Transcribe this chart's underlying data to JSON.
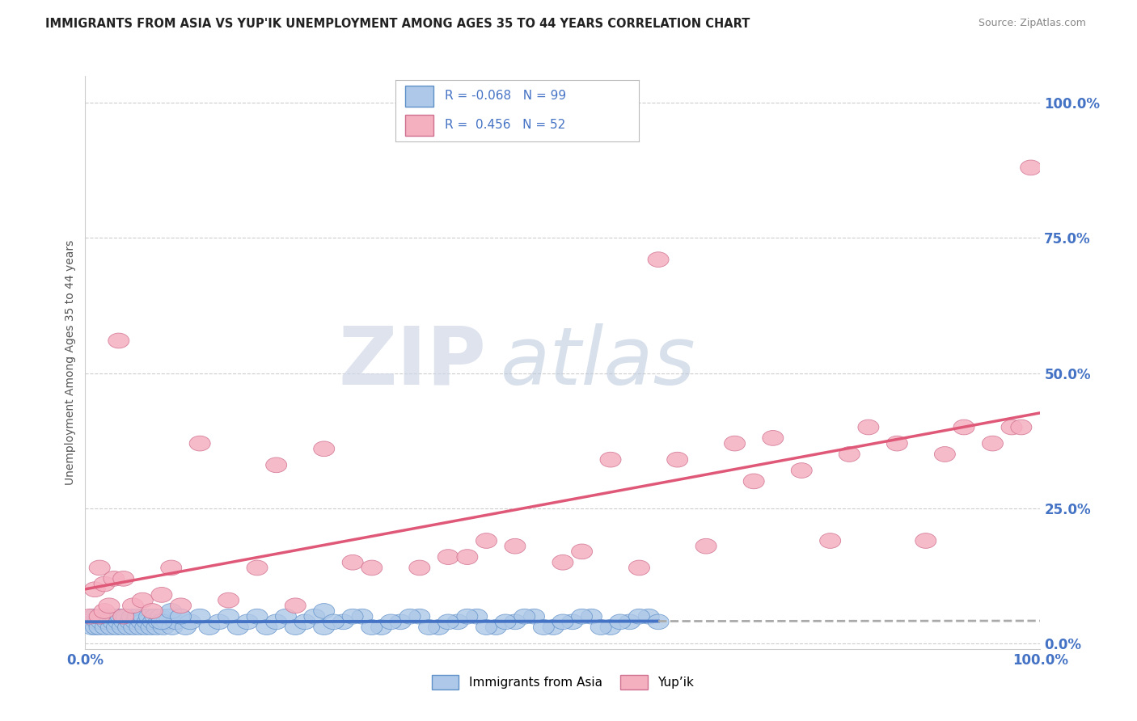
{
  "title": "IMMIGRANTS FROM ASIA VS YUP'IK UNEMPLOYMENT AMONG AGES 35 TO 44 YEARS CORRELATION CHART",
  "source": "Source: ZipAtlas.com",
  "ylabel": "Unemployment Among Ages 35 to 44 years",
  "xlim": [
    0.0,
    1.0
  ],
  "ylim": [
    -0.01,
    1.05
  ],
  "ytick_labels": [
    "0.0%",
    "25.0%",
    "50.0%",
    "75.0%",
    "100.0%"
  ],
  "ytick_values": [
    0.0,
    0.25,
    0.5,
    0.75,
    1.0
  ],
  "xtick_labels": [
    "0.0%",
    "100.0%"
  ],
  "xtick_values": [
    0.0,
    1.0
  ],
  "legend_label1": "Immigrants from Asia",
  "legend_label2": "Yup’ik",
  "r1": -0.068,
  "n1": 99,
  "r2": 0.456,
  "n2": 52,
  "color1": "#adc8e8",
  "color2": "#f5b0c0",
  "line_color1": "#4472c4",
  "line_color2": "#e05878",
  "background_color": "#ffffff",
  "blue_x": [
    0.005,
    0.007,
    0.009,
    0.011,
    0.013,
    0.015,
    0.017,
    0.019,
    0.021,
    0.023,
    0.025,
    0.027,
    0.029,
    0.031,
    0.033,
    0.035,
    0.037,
    0.039,
    0.041,
    0.043,
    0.045,
    0.047,
    0.049,
    0.051,
    0.053,
    0.055,
    0.057,
    0.059,
    0.061,
    0.063,
    0.065,
    0.067,
    0.069,
    0.071,
    0.073,
    0.075,
    0.077,
    0.079,
    0.082,
    0.085,
    0.088,
    0.091,
    0.095,
    0.1,
    0.105,
    0.11,
    0.12,
    0.13,
    0.14,
    0.15,
    0.16,
    0.17,
    0.18,
    0.19,
    0.2,
    0.21,
    0.22,
    0.23,
    0.24,
    0.25,
    0.27,
    0.29,
    0.31,
    0.33,
    0.35,
    0.37,
    0.39,
    0.41,
    0.43,
    0.45,
    0.47,
    0.49,
    0.51,
    0.53,
    0.55,
    0.57,
    0.59,
    0.3,
    0.32,
    0.34,
    0.36,
    0.38,
    0.4,
    0.42,
    0.44,
    0.46,
    0.48,
    0.5,
    0.52,
    0.54,
    0.56,
    0.58,
    0.6,
    0.25,
    0.26,
    0.28,
    0.08,
    0.09,
    0.1
  ],
  "blue_y": [
    0.04,
    0.03,
    0.05,
    0.03,
    0.04,
    0.03,
    0.04,
    0.05,
    0.03,
    0.04,
    0.05,
    0.03,
    0.04,
    0.05,
    0.03,
    0.04,
    0.05,
    0.03,
    0.04,
    0.05,
    0.03,
    0.04,
    0.05,
    0.03,
    0.04,
    0.05,
    0.03,
    0.04,
    0.05,
    0.03,
    0.04,
    0.05,
    0.03,
    0.04,
    0.05,
    0.03,
    0.04,
    0.05,
    0.03,
    0.04,
    0.05,
    0.03,
    0.04,
    0.05,
    0.03,
    0.04,
    0.05,
    0.03,
    0.04,
    0.05,
    0.03,
    0.04,
    0.05,
    0.03,
    0.04,
    0.05,
    0.03,
    0.04,
    0.05,
    0.03,
    0.04,
    0.05,
    0.03,
    0.04,
    0.05,
    0.03,
    0.04,
    0.05,
    0.03,
    0.04,
    0.05,
    0.03,
    0.04,
    0.05,
    0.03,
    0.04,
    0.05,
    0.03,
    0.04,
    0.05,
    0.03,
    0.04,
    0.05,
    0.03,
    0.04,
    0.05,
    0.03,
    0.04,
    0.05,
    0.03,
    0.04,
    0.05,
    0.04,
    0.06,
    0.04,
    0.05,
    0.04,
    0.06,
    0.05
  ],
  "pink_x": [
    0.005,
    0.01,
    0.015,
    0.015,
    0.02,
    0.02,
    0.025,
    0.03,
    0.035,
    0.04,
    0.04,
    0.05,
    0.06,
    0.07,
    0.08,
    0.09,
    0.1,
    0.12,
    0.15,
    0.18,
    0.2,
    0.22,
    0.25,
    0.28,
    0.3,
    0.35,
    0.38,
    0.4,
    0.42,
    0.45,
    0.5,
    0.52,
    0.55,
    0.58,
    0.6,
    0.62,
    0.65,
    0.68,
    0.7,
    0.72,
    0.75,
    0.78,
    0.8,
    0.82,
    0.85,
    0.88,
    0.9,
    0.92,
    0.95,
    0.97,
    0.98,
    0.99
  ],
  "pink_y": [
    0.05,
    0.1,
    0.05,
    0.14,
    0.06,
    0.11,
    0.07,
    0.12,
    0.56,
    0.05,
    0.12,
    0.07,
    0.08,
    0.06,
    0.09,
    0.14,
    0.07,
    0.37,
    0.08,
    0.14,
    0.33,
    0.07,
    0.36,
    0.15,
    0.14,
    0.14,
    0.16,
    0.16,
    0.19,
    0.18,
    0.15,
    0.17,
    0.34,
    0.14,
    0.71,
    0.34,
    0.18,
    0.37,
    0.3,
    0.38,
    0.32,
    0.19,
    0.35,
    0.4,
    0.37,
    0.19,
    0.35,
    0.4,
    0.37,
    0.4,
    0.4,
    0.88
  ]
}
